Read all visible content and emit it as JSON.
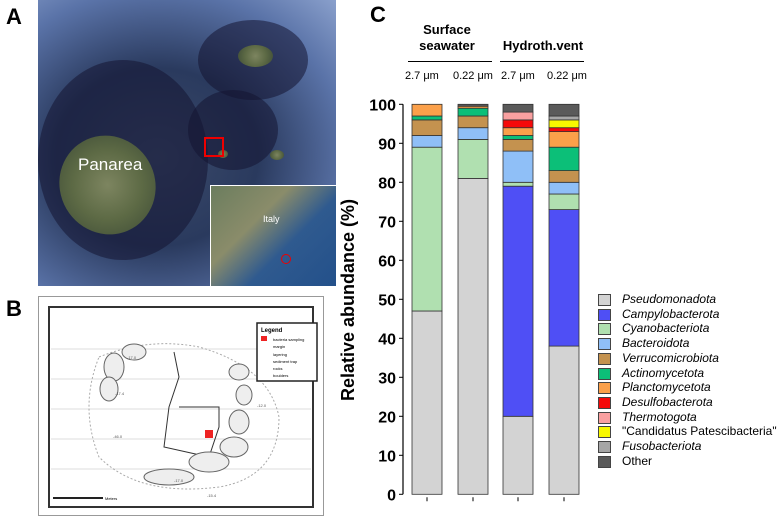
{
  "panels": {
    "a": "A",
    "b": "B",
    "c": "C"
  },
  "map_a": {
    "island_label": "Panarea",
    "inset_label": "Italy"
  },
  "map_b": {
    "legend_title": "Legend",
    "legend_items": [
      "bacteria sampling",
      "margin",
      "layering",
      "sediment trap",
      "rocks",
      "boulders"
    ],
    "depth_labels": [
      "-17.0",
      "-17.4",
      "-12.0",
      "-46.0",
      "-17.0",
      "-15.4"
    ],
    "scale_label": "Meters"
  },
  "chart_data": {
    "type": "bar",
    "stacked": true,
    "ylabel": "Relative abundance (%)",
    "ylim": [
      0,
      100
    ],
    "yticks": [
      0,
      10,
      20,
      30,
      40,
      50,
      60,
      70,
      80,
      90,
      100
    ],
    "groups": [
      {
        "label": "Surface seawater",
        "line1": "Surface",
        "line2": "seawater"
      },
      {
        "label": "Hydroth.vent",
        "line1": "",
        "line2": "Hydroth.vent"
      }
    ],
    "categories": [
      "2.7 μm",
      "0.22 μm",
      "2.7 μm",
      "0.22 μm"
    ],
    "legend_position": "right",
    "series": [
      {
        "name": "Pseudomonadota",
        "color": "#d3d3d3",
        "values": [
          47,
          81,
          20,
          38
        ]
      },
      {
        "name": "Campylobacterota",
        "color": "#4f4ff5",
        "values": [
          0,
          0,
          59,
          35
        ]
      },
      {
        "name": "Cyanobacteriota",
        "color": "#b0e0b0",
        "values": [
          42,
          10,
          1,
          4
        ]
      },
      {
        "name": "Bacteroidota",
        "color": "#8fbff7",
        "values": [
          3,
          3,
          8,
          3
        ]
      },
      {
        "name": "Verrucomicrobiota",
        "color": "#c4924f",
        "values": [
          4,
          3,
          3,
          3
        ]
      },
      {
        "name": "Actinomycetota",
        "color": "#0cbf78",
        "values": [
          1,
          2,
          1,
          6
        ]
      },
      {
        "name": "Planctomycetota",
        "color": "#fba04a",
        "values": [
          3,
          0.5,
          2,
          4
        ]
      },
      {
        "name": "Desulfobacterota",
        "color": "#f50a0a",
        "values": [
          0,
          0,
          2,
          1
        ]
      },
      {
        "name": "Thermotogota",
        "color": "#f9a0a0",
        "values": [
          0,
          0,
          2,
          0
        ]
      },
      {
        "name": "\"Candidatus Patescibacteria\"",
        "color": "#f8f800",
        "values": [
          0,
          0,
          0,
          2
        ]
      },
      {
        "name": "Fusobacteriota",
        "color": "#a6a6a6",
        "values": [
          0,
          0,
          0,
          1
        ]
      },
      {
        "name": "Other",
        "color": "#5a5a5a",
        "values": [
          0,
          0.5,
          2,
          3
        ]
      }
    ]
  }
}
